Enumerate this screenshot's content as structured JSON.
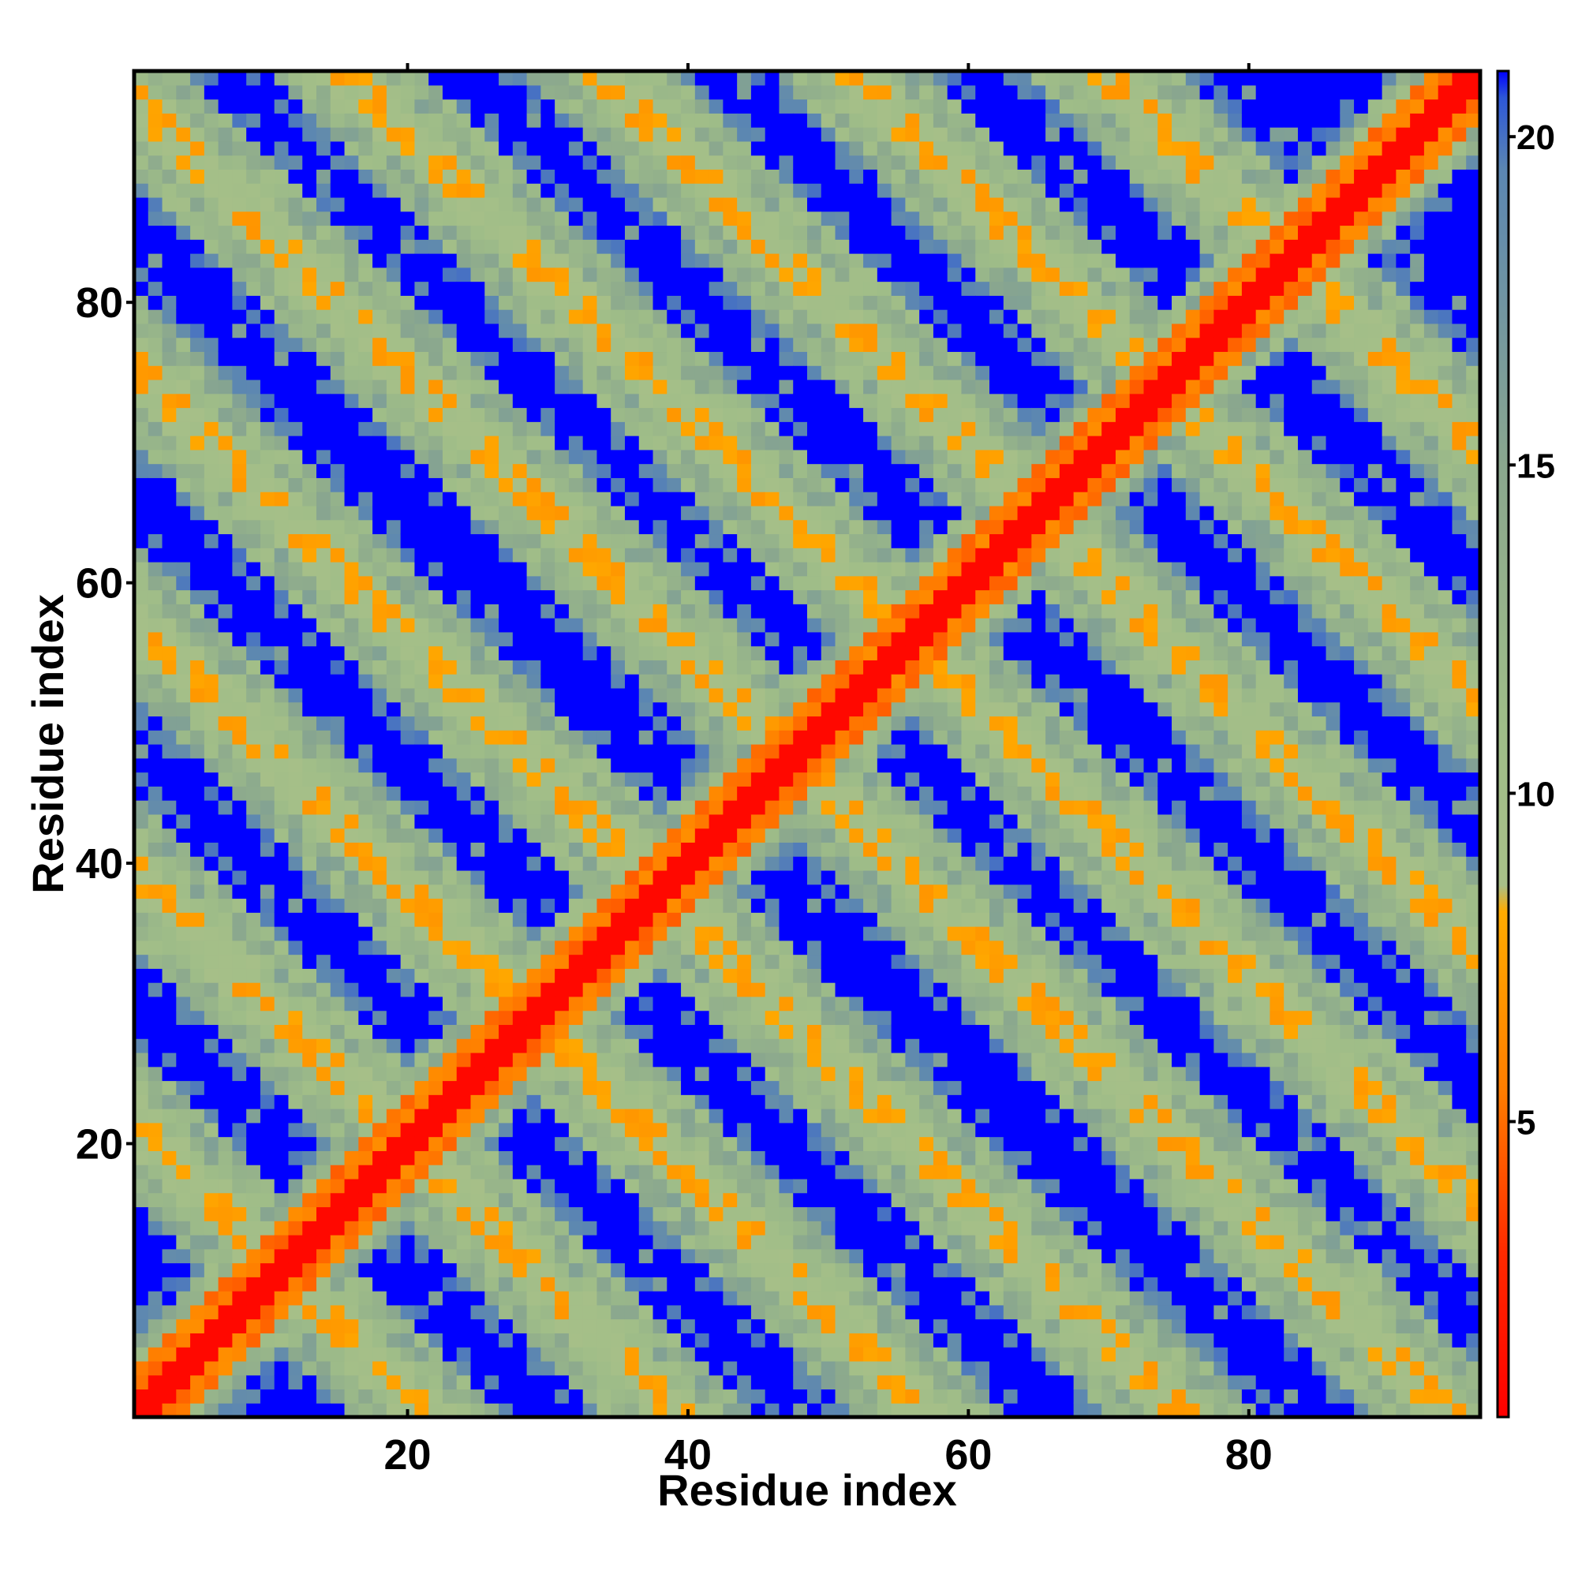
{
  "chart_data": {
    "type": "heatmap",
    "title": "",
    "xlabel": "Residue index",
    "ylabel": "Residue index",
    "n_residues": 96,
    "xlim": [
      0.5,
      96.5
    ],
    "ylim": [
      0.5,
      96.5
    ],
    "x_ticks": [
      20,
      40,
      60,
      80
    ],
    "y_ticks": [
      20,
      40,
      60,
      80
    ],
    "grid": false,
    "legend": "colorbar right",
    "colorbar": {
      "range": [
        0.5,
        21.0
      ],
      "ticks": [
        5,
        10,
        15,
        20
      ],
      "stops": [
        {
          "value": 0.5,
          "color": "#ff0000"
        },
        {
          "value": 3.0,
          "color": "#ff2a00"
        },
        {
          "value": 5.5,
          "color": "#ff7e00"
        },
        {
          "value": 8.2,
          "color": "#ffab00"
        },
        {
          "value": 8.6,
          "color": "#a8c088"
        },
        {
          "value": 11.0,
          "color": "#9fbd88"
        },
        {
          "value": 15.0,
          "color": "#8aa78e"
        },
        {
          "value": 19.5,
          "color": "#5b86b2"
        },
        {
          "value": 20.6,
          "color": "#2d57d8"
        },
        {
          "value": 21.0,
          "color": "#0000ff"
        }
      ]
    },
    "matrix_model": {
      "description": "pairwise distance map; values estimated from color bands",
      "diagonal_value": 1.0,
      "background_value": 21.0,
      "contact_value": 6.0,
      "diagonal_bands": [
        0
      ],
      "anti_diagonal_bands": [
        22,
        40,
        58,
        76,
        95,
        112,
        130,
        148,
        166
      ]
    }
  }
}
